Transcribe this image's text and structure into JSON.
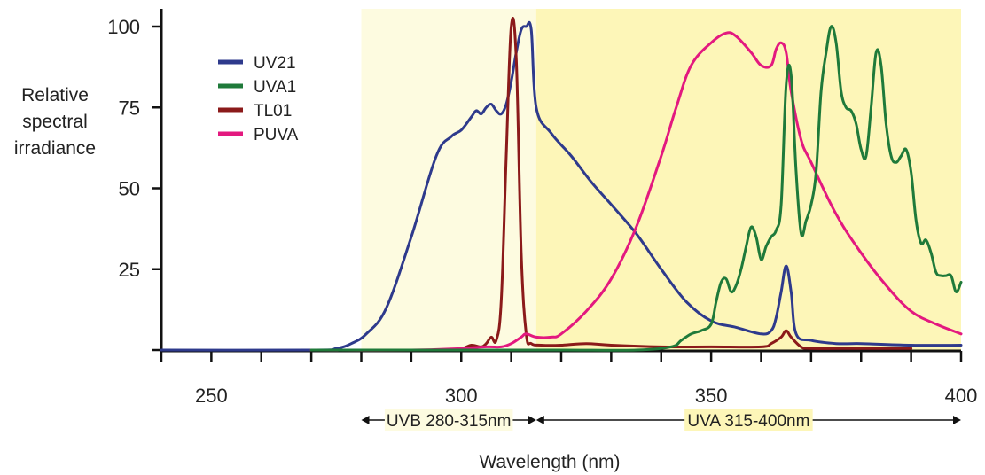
{
  "chart_data": {
    "type": "line",
    "title": "",
    "xlabel": "Wavelength (nm)",
    "ylabel": [
      "Relative",
      "spectral",
      "irradiance"
    ],
    "xlim": [
      240,
      400
    ],
    "ylim": [
      0,
      100
    ],
    "xticks": [
      250,
      300,
      350,
      400
    ],
    "yticks": [
      25,
      50,
      75,
      100
    ],
    "grid": false,
    "legend_position": "top-left",
    "bands": [
      {
        "name": "UVB",
        "range": [
          280,
          315
        ],
        "label": "UVB 280-315nm",
        "color": "#fdfbe0"
      },
      {
        "name": "UVA",
        "range": [
          315,
          400
        ],
        "label": "UVA 315-400nm",
        "color": "#fdf6b8"
      }
    ],
    "series": [
      {
        "name": "UV21",
        "color": "#2e3a8c",
        "x": [
          240,
          270,
          275,
          278,
          281,
          285,
          290,
          295,
          298,
          300,
          302,
          303,
          304,
          305,
          306,
          307,
          308,
          309,
          310,
          311,
          312,
          313,
          314,
          315,
          318,
          322,
          326,
          330,
          335,
          340,
          345,
          350,
          355,
          360,
          362,
          363,
          364,
          365,
          366,
          367,
          370,
          375,
          380,
          390,
          400
        ],
        "y": [
          0,
          0,
          0.5,
          2,
          5,
          13,
          35,
          60,
          66,
          68,
          72,
          74,
          73,
          75,
          76,
          74,
          73,
          76,
          83,
          92,
          99,
          100,
          99,
          75,
          67,
          60,
          52,
          45,
          36,
          25,
          15,
          9,
          7,
          5,
          6,
          10,
          18,
          26,
          18,
          5,
          3,
          2,
          2,
          1.5,
          1.5
        ]
      },
      {
        "name": "UVA1",
        "color": "#1f7a3a",
        "x": [
          270,
          300,
          320,
          335,
          342,
          344,
          346,
          348,
          350,
          351,
          352,
          353,
          354,
          355,
          356,
          357,
          358,
          359,
          360,
          361,
          362,
          363,
          364,
          365,
          366,
          367,
          368,
          369,
          370,
          371,
          372,
          373,
          374,
          375,
          376,
          377,
          378,
          379,
          380,
          381,
          382,
          383,
          384,
          385,
          386,
          387,
          388,
          389,
          390,
          391,
          392,
          393,
          394,
          395,
          396,
          397,
          398,
          399,
          400
        ],
        "y": [
          0,
          0,
          0,
          0,
          1,
          3,
          5,
          6,
          8,
          15,
          21,
          22,
          18,
          20,
          25,
          32,
          38,
          35,
          28,
          32,
          35,
          37,
          45,
          82,
          85,
          55,
          36,
          40,
          45,
          55,
          80,
          92,
          100,
          95,
          80,
          75,
          74,
          70,
          62,
          60,
          75,
          92,
          88,
          70,
          60,
          58,
          60,
          62,
          55,
          40,
          33,
          34,
          30,
          24,
          23,
          23,
          23,
          18,
          21
        ]
      },
      {
        "name": "TL01",
        "color": "#8b1a1a",
        "x": [
          270,
          295,
          300,
          302,
          304,
          305,
          306,
          307,
          308,
          309,
          310,
          311,
          312,
          313,
          314,
          316,
          320,
          325,
          330,
          340,
          350,
          360,
          362,
          364,
          365,
          366,
          368,
          370,
          380,
          390
        ],
        "y": [
          0,
          0,
          0.5,
          1.5,
          1,
          2,
          4,
          3,
          15,
          60,
          100,
          90,
          30,
          5,
          2,
          1.5,
          1.5,
          2,
          1.5,
          1,
          1,
          1,
          2,
          4,
          6,
          4,
          1,
          0.5,
          0.5,
          0.5
        ]
      },
      {
        "name": "PUVA",
        "color": "#e3197f",
        "x": [
          270,
          290,
          300,
          305,
          308,
          310,
          312,
          313,
          315,
          318,
          320,
          325,
          330,
          335,
          340,
          343,
          346,
          350,
          353,
          355,
          358,
          360,
          362,
          363,
          364,
          365,
          366,
          368,
          370,
          375,
          380,
          385,
          390,
          395,
          400
        ],
        "y": [
          0,
          0,
          0.5,
          1,
          1,
          2,
          4,
          5,
          4,
          4,
          5,
          12,
          22,
          38,
          60,
          75,
          88,
          95,
          98,
          97,
          92,
          88,
          88,
          93,
          95,
          92,
          80,
          65,
          58,
          42,
          30,
          20,
          12,
          8,
          5
        ]
      }
    ]
  }
}
